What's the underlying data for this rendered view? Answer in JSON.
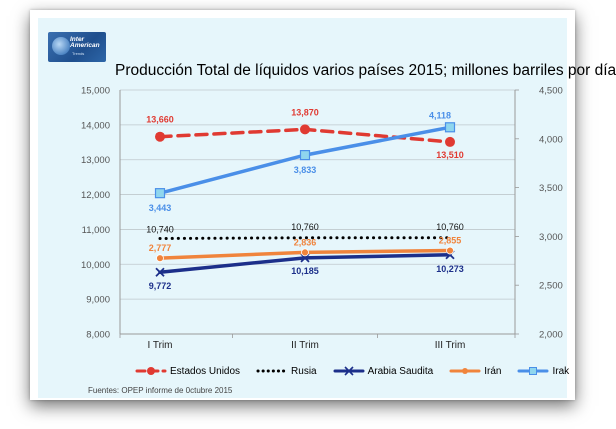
{
  "logo": {
    "line1": "Inter",
    "line2": "American",
    "line3": "Trends"
  },
  "chart_data": {
    "type": "line",
    "title": "Producción Total de líquidos varios países 2015; millones barriles por día",
    "categories": [
      "I Trim",
      "II Trim",
      "III Trim"
    ],
    "y_left": {
      "min": 8000,
      "max": 15000,
      "ticks": [
        "8,000",
        "9,000",
        "10,000",
        "11,000",
        "12,000",
        "13,000",
        "14,000",
        "15,000"
      ],
      "values": [
        8000,
        9000,
        10000,
        11000,
        12000,
        13000,
        14000,
        15000
      ]
    },
    "y_right": {
      "min": 2000,
      "max": 4500,
      "ticks": [
        "2,000",
        "2,500",
        "3,000",
        "3,500",
        "4,000",
        "4,500"
      ],
      "values": [
        2000,
        2500,
        3000,
        3500,
        4000,
        4500
      ]
    },
    "series": [
      {
        "name": "Estados Unidos",
        "axis": "left",
        "values": [
          13660,
          13870,
          13510
        ],
        "labels": [
          "13,660",
          "13,870",
          "13,510"
        ],
        "color": "#e03a32",
        "style": "dashed",
        "marker": "circle"
      },
      {
        "name": "Rusia",
        "axis": "left",
        "values": [
          10740,
          10760,
          10760
        ],
        "labels": [
          "10,740",
          "10,760",
          "10,760"
        ],
        "color": "#000000",
        "style": "dotted",
        "marker": "none"
      },
      {
        "name": "Arabia Saudita",
        "axis": "left",
        "values": [
          9772,
          10185,
          10273
        ],
        "labels": [
          "9,772",
          "10,185",
          "10,273"
        ],
        "color": "#1c2f8a",
        "style": "solid",
        "marker": "x"
      },
      {
        "name": "Irán",
        "axis": "right",
        "values": [
          2777,
          2836,
          2855
        ],
        "labels": [
          "2,777",
          "2,836",
          "2,855"
        ],
        "color": "#f0843c",
        "style": "solid",
        "marker": "circle-small"
      },
      {
        "name": "Irak",
        "axis": "right",
        "values": [
          3443,
          3833,
          4118
        ],
        "labels": [
          "3,443",
          "3,833",
          "4,118"
        ],
        "color": "#4a8fe8",
        "style": "solid",
        "marker": "square"
      }
    ],
    "source": "Fuentes: OPEP informe de 0ctubre 2015"
  }
}
